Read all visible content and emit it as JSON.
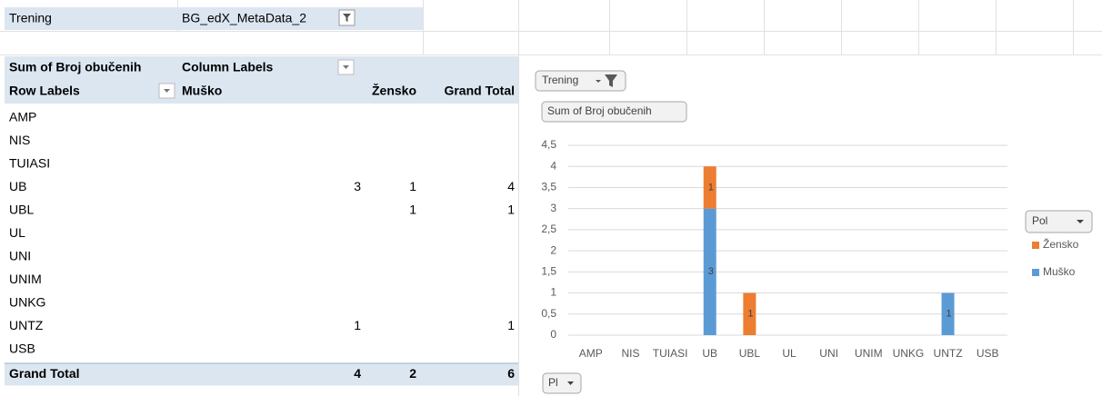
{
  "table": {
    "filter_label": "Trening",
    "filter_value": "BG_edX_MetaData_2",
    "value_header": "Sum of Broj obučenih",
    "column_header": "Column Labels",
    "columns": [
      "Row Labels",
      "Muško",
      "Žensko",
      "Grand Total"
    ],
    "rows": [
      {
        "label": "AMP",
        "values": [
          null,
          null,
          null
        ]
      },
      {
        "label": "NIS",
        "values": [
          null,
          null,
          null
        ]
      },
      {
        "label": "TUIASI",
        "values": [
          null,
          null,
          null
        ]
      },
      {
        "label": "UB",
        "values": [
          3,
          1,
          4
        ]
      },
      {
        "label": "UBL",
        "values": [
          null,
          1,
          1
        ]
      },
      {
        "label": "UL",
        "values": [
          null,
          null,
          null
        ]
      },
      {
        "label": "UNI",
        "values": [
          null,
          null,
          null
        ]
      },
      {
        "label": "UNIM",
        "values": [
          null,
          null,
          null
        ]
      },
      {
        "label": "UNKG",
        "values": [
          null,
          null,
          null
        ]
      },
      {
        "label": "UNTZ",
        "values": [
          1,
          null,
          1
        ]
      },
      {
        "label": "USB",
        "values": [
          null,
          null,
          null
        ]
      }
    ],
    "total": {
      "label": "Grand Total",
      "values": [
        4,
        2,
        6
      ]
    }
  },
  "chart_data": {
    "type": "stacked_bar",
    "filter_button": "Trening",
    "value_button": "Sum of Broj obučenih",
    "legend_title": "Pol",
    "axis_button": "Pl",
    "categories": [
      "AMP",
      "NIS",
      "TUIASI",
      "UB",
      "UBL",
      "UL",
      "UNI",
      "UNIM",
      "UNKG",
      "UNTZ",
      "USB"
    ],
    "series": [
      {
        "name": "Muško",
        "color": "#5b9bd5",
        "values": [
          null,
          null,
          null,
          3,
          null,
          null,
          null,
          null,
          null,
          1,
          null
        ]
      },
      {
        "name": "Žensko",
        "color": "#ed7d31",
        "values": [
          null,
          null,
          null,
          1,
          1,
          null,
          null,
          null,
          null,
          null,
          null
        ]
      }
    ],
    "ylim": [
      0,
      4.5
    ],
    "yticks": [
      0,
      {
        "value": 0.5,
        "label": "0,5"
      },
      1,
      {
        "value": 1.5,
        "label": "1,5"
      },
      2,
      {
        "value": 2.5,
        "label": "2,5"
      },
      3,
      {
        "value": 3.5,
        "label": "3,5"
      },
      4,
      {
        "value": 4.5,
        "label": "4,5"
      }
    ],
    "grid": true,
    "legend": "right"
  }
}
